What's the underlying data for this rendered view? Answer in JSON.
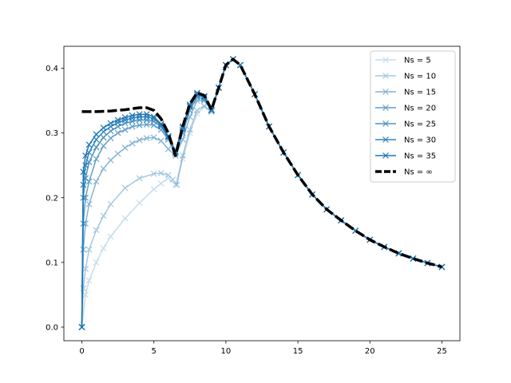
{
  "chart_data": {
    "type": "line",
    "title": "",
    "xlabel": "",
    "ylabel": "",
    "xlim": [
      -1.25,
      26.25
    ],
    "ylim": [
      -0.021,
      0.434
    ],
    "xticks": [
      0,
      5,
      10,
      15,
      20,
      25
    ],
    "yticks": [
      0.0,
      0.1,
      0.2,
      0.3,
      0.4
    ],
    "xtick_labels": [
      "0",
      "5",
      "10",
      "15",
      "20",
      "25"
    ],
    "ytick_labels": [
      "0.0",
      "0.1",
      "0.2",
      "0.3",
      "0.4"
    ],
    "grid": false,
    "legend_position": "top-right",
    "marker": "x",
    "color": "#1f77b4",
    "series": [
      {
        "name": "Ns = 5",
        "alpha": 0.25,
        "style": "line-x",
        "x": [
          0,
          0.25,
          0.5,
          1,
          1.5,
          2,
          3,
          4,
          5,
          5.5,
          6,
          6.5,
          7,
          7.5,
          8,
          8.5,
          9,
          9.5,
          10,
          10.5,
          11,
          12,
          13,
          14,
          15,
          16,
          17,
          18,
          19,
          20,
          21,
          22,
          23,
          24,
          25
        ],
        "y": [
          0.0,
          0.05,
          0.072,
          0.1,
          0.122,
          0.14,
          0.168,
          0.192,
          0.213,
          0.222,
          0.23,
          0.22,
          0.26,
          0.3,
          0.33,
          0.34,
          0.333,
          0.37,
          0.405,
          0.414,
          0.405,
          0.36,
          0.31,
          0.27,
          0.235,
          0.205,
          0.182,
          0.165,
          0.149,
          0.135,
          0.124,
          0.114,
          0.106,
          0.099,
          0.093
        ]
      },
      {
        "name": "Ns = 10",
        "alpha": 0.4,
        "style": "line-x",
        "x": [
          0,
          0.1,
          0.25,
          0.5,
          1,
          1.5,
          2,
          3,
          4,
          5,
          5.5,
          6,
          6.3,
          6.6,
          7,
          7.5,
          8,
          8.5,
          9,
          9.5,
          10,
          10.5,
          11,
          12,
          13,
          14,
          15,
          16,
          17,
          18,
          19,
          20,
          21,
          22,
          23,
          24,
          25
        ],
        "y": [
          0.0,
          0.06,
          0.09,
          0.12,
          0.15,
          0.172,
          0.19,
          0.215,
          0.23,
          0.237,
          0.238,
          0.235,
          0.228,
          0.22,
          0.265,
          0.305,
          0.335,
          0.342,
          0.333,
          0.37,
          0.405,
          0.414,
          0.405,
          0.36,
          0.31,
          0.27,
          0.235,
          0.205,
          0.182,
          0.165,
          0.149,
          0.135,
          0.124,
          0.114,
          0.106,
          0.099,
          0.093
        ]
      },
      {
        "name": "Ns = 15",
        "alpha": 0.55,
        "style": "line-x",
        "x": [
          0,
          0.1,
          0.25,
          0.5,
          1,
          1.5,
          2,
          2.5,
          3,
          3.5,
          4,
          4.5,
          5,
          5.5,
          6,
          6.5,
          7,
          7.5,
          8,
          8.5,
          9,
          9.5,
          10,
          10.5,
          11,
          12,
          13,
          14,
          15,
          16,
          17,
          18,
          19,
          20,
          21,
          22,
          23,
          24,
          25
        ],
        "y": [
          0.0,
          0.12,
          0.16,
          0.19,
          0.225,
          0.245,
          0.258,
          0.268,
          0.277,
          0.284,
          0.289,
          0.292,
          0.293,
          0.288,
          0.275,
          0.265,
          0.29,
          0.325,
          0.35,
          0.35,
          0.335,
          0.37,
          0.405,
          0.414,
          0.405,
          0.36,
          0.31,
          0.27,
          0.235,
          0.205,
          0.182,
          0.165,
          0.149,
          0.135,
          0.124,
          0.114,
          0.106,
          0.099,
          0.093
        ]
      },
      {
        "name": "Ns = 20",
        "alpha": 0.7,
        "style": "line-x",
        "x": [
          0,
          0.1,
          0.25,
          0.5,
          1,
          1.5,
          2,
          2.5,
          3,
          3.5,
          4,
          4.5,
          5,
          5.5,
          6,
          6.5,
          7,
          7.5,
          8,
          8.5,
          9,
          9.5,
          10,
          10.5,
          11,
          12,
          13,
          14,
          15,
          16,
          17,
          18,
          19,
          20,
          21,
          22,
          23,
          24,
          25
        ],
        "y": [
          0.0,
          0.16,
          0.2,
          0.225,
          0.26,
          0.28,
          0.292,
          0.3,
          0.305,
          0.31,
          0.312,
          0.313,
          0.312,
          0.305,
          0.29,
          0.268,
          0.3,
          0.335,
          0.355,
          0.352,
          0.335,
          0.37,
          0.405,
          0.414,
          0.405,
          0.36,
          0.31,
          0.27,
          0.235,
          0.205,
          0.182,
          0.165,
          0.149,
          0.135,
          0.124,
          0.114,
          0.106,
          0.099,
          0.093
        ]
      },
      {
        "name": "Ns = 25",
        "alpha": 0.8,
        "style": "line-x",
        "x": [
          0,
          0.1,
          0.25,
          0.5,
          1,
          1.5,
          2,
          2.5,
          3,
          3.5,
          4,
          4.5,
          5,
          5.5,
          6,
          6.5,
          7,
          7.5,
          8,
          8.5,
          9,
          9.5,
          10,
          10.5,
          11,
          12,
          13,
          14,
          15,
          16,
          17,
          18,
          19,
          20,
          21,
          22,
          23,
          24,
          25
        ],
        "y": [
          0.0,
          0.2,
          0.23,
          0.255,
          0.278,
          0.293,
          0.303,
          0.31,
          0.315,
          0.318,
          0.32,
          0.32,
          0.318,
          0.31,
          0.293,
          0.27,
          0.305,
          0.34,
          0.358,
          0.355,
          0.335,
          0.37,
          0.405,
          0.414,
          0.405,
          0.36,
          0.31,
          0.27,
          0.235,
          0.205,
          0.182,
          0.165,
          0.149,
          0.135,
          0.124,
          0.114,
          0.106,
          0.099,
          0.093
        ]
      },
      {
        "name": "Ns = 30",
        "alpha": 0.9,
        "style": "line-x",
        "x": [
          0,
          0.1,
          0.25,
          0.5,
          1,
          1.5,
          2,
          2.5,
          3,
          3.5,
          4,
          4.5,
          5,
          5.5,
          6,
          6.5,
          7,
          7.5,
          8,
          8.5,
          9,
          9.5,
          10,
          10.5,
          11,
          12,
          13,
          14,
          15,
          16,
          17,
          18,
          19,
          20,
          21,
          22,
          23,
          24,
          25
        ],
        "y": [
          0.0,
          0.22,
          0.25,
          0.27,
          0.29,
          0.302,
          0.31,
          0.316,
          0.32,
          0.323,
          0.325,
          0.325,
          0.322,
          0.312,
          0.294,
          0.271,
          0.308,
          0.342,
          0.36,
          0.356,
          0.336,
          0.37,
          0.405,
          0.414,
          0.405,
          0.36,
          0.31,
          0.27,
          0.235,
          0.205,
          0.182,
          0.165,
          0.149,
          0.135,
          0.124,
          0.114,
          0.106,
          0.099,
          0.093
        ]
      },
      {
        "name": "Ns = 35",
        "alpha": 1.0,
        "style": "line-x",
        "x": [
          0,
          0.1,
          0.25,
          0.5,
          1,
          1.5,
          2,
          2.5,
          3,
          3.5,
          4,
          4.5,
          5,
          5.5,
          6,
          6.5,
          7,
          7.5,
          8,
          8.5,
          9,
          9.5,
          10,
          10.5,
          11,
          12,
          13,
          14,
          15,
          16,
          17,
          18,
          19,
          20,
          21,
          22,
          23,
          24,
          25
        ],
        "y": [
          0.0,
          0.24,
          0.265,
          0.282,
          0.298,
          0.308,
          0.315,
          0.32,
          0.324,
          0.327,
          0.329,
          0.329,
          0.325,
          0.314,
          0.295,
          0.272,
          0.31,
          0.344,
          0.362,
          0.357,
          0.336,
          0.37,
          0.405,
          0.414,
          0.405,
          0.36,
          0.31,
          0.27,
          0.235,
          0.205,
          0.182,
          0.165,
          0.149,
          0.135,
          0.124,
          0.114,
          0.106,
          0.099,
          0.093
        ]
      },
      {
        "name": "Ns = ∞",
        "alpha": 1.0,
        "style": "dashed-black",
        "x": [
          0,
          1,
          2,
          3,
          4,
          4.5,
          5,
          5.5,
          6,
          6.5,
          7,
          7.5,
          8,
          8.5,
          9,
          9.5,
          10,
          10.5,
          11,
          12,
          13,
          14,
          15,
          16,
          17,
          18,
          19,
          20,
          21,
          22,
          23,
          24,
          25
        ],
        "y": [
          0.333,
          0.333,
          0.334,
          0.336,
          0.339,
          0.339,
          0.335,
          0.322,
          0.3,
          0.265,
          0.31,
          0.345,
          0.362,
          0.358,
          0.336,
          0.37,
          0.405,
          0.414,
          0.405,
          0.36,
          0.31,
          0.27,
          0.235,
          0.205,
          0.182,
          0.165,
          0.149,
          0.135,
          0.124,
          0.114,
          0.106,
          0.099,
          0.093
        ]
      }
    ]
  }
}
